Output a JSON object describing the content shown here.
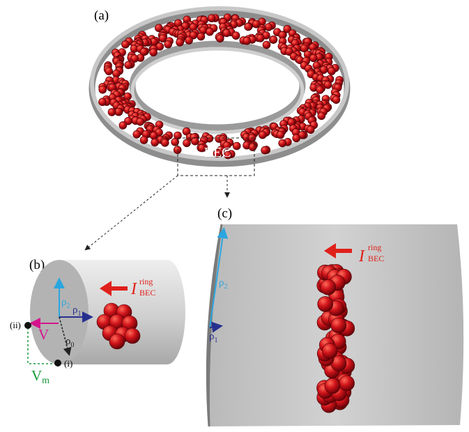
{
  "panel_a": {
    "label": "(a)",
    "condensate_label": "BEC"
  },
  "panel_b": {
    "label": "(b)",
    "current": {
      "symbol": "I",
      "superscript": "ring",
      "subscript": "BEC"
    },
    "rho2": {
      "symbol": "ρ",
      "subscript": "2"
    },
    "rho1": {
      "symbol": "ρ",
      "subscript": "1"
    },
    "rho0": {
      "symbol": "ρ",
      "subscript": "0"
    },
    "velocity": "V",
    "measured_velocity": {
      "symbol": "V",
      "subscript": "m"
    },
    "point_i": "(i)",
    "point_ii": "(ii)"
  },
  "panel_c": {
    "label": "(c)",
    "current": {
      "symbol": "I",
      "superscript": "ring",
      "subscript": "BEC"
    },
    "rho2": {
      "symbol": "ρ",
      "subscript": "2"
    },
    "rho1": {
      "symbol": "ρ",
      "subscript": "1"
    }
  }
}
